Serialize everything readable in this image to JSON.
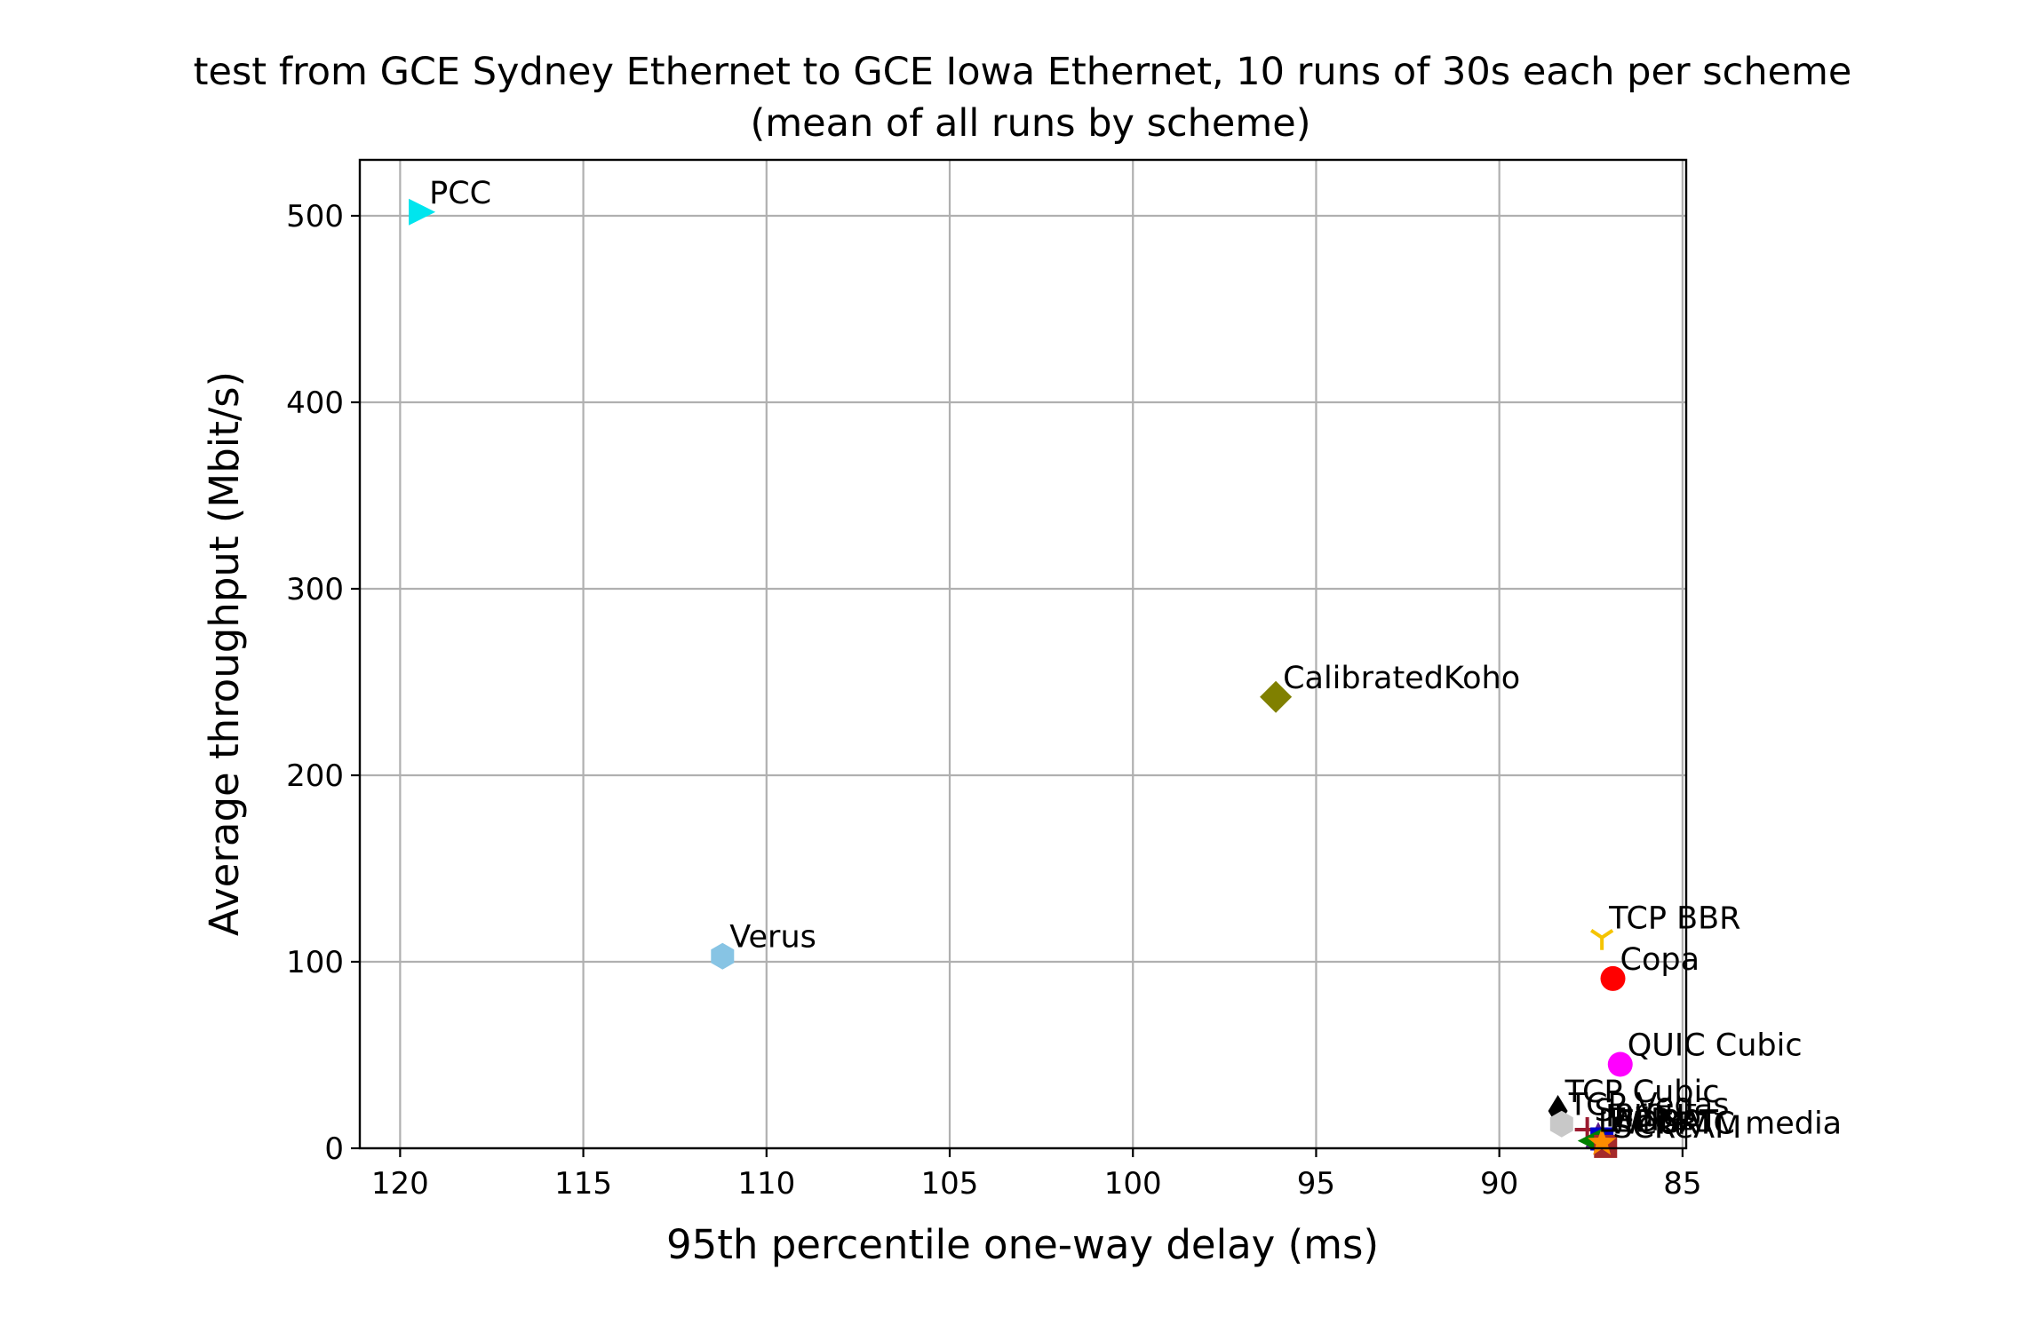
{
  "chart_data": {
    "type": "scatter",
    "title": "test from GCE Sydney Ethernet to GCE Iowa Ethernet, 10 runs of 30s each per scheme",
    "subtitle": "(mean of all runs by scheme)",
    "xlabel": "95th percentile one-way delay (ms)",
    "ylabel": "Average throughput (Mbit/s)",
    "x_inverted": true,
    "xlim": [
      121.1,
      84.9
    ],
    "ylim": [
      0,
      530
    ],
    "xticks": [
      120,
      115,
      110,
      105,
      100,
      95,
      90,
      85
    ],
    "yticks": [
      0,
      100,
      200,
      300,
      400,
      500
    ],
    "grid": true,
    "points": [
      {
        "label": "PCC",
        "x": 119.4,
        "y": 502,
        "marker": "triangle-right",
        "color": "#00e5ee"
      },
      {
        "label": "CalibratedKoho",
        "x": 96.1,
        "y": 242,
        "marker": "diamond",
        "color": "#808000"
      },
      {
        "label": "Verus",
        "x": 111.2,
        "y": 103,
        "marker": "hexagon",
        "color": "#87c4e4"
      },
      {
        "label": "TCP BBR",
        "x": 87.2,
        "y": 113,
        "marker": "tri-down",
        "color": "#f5c400"
      },
      {
        "label": "Copa",
        "x": 86.9,
        "y": 91,
        "marker": "circle",
        "color": "#ff0000"
      },
      {
        "label": "QUIC Cubic",
        "x": 86.7,
        "y": 45,
        "marker": "circle",
        "color": "#ff00ff"
      },
      {
        "label": "TCP Cubic",
        "x": 88.4,
        "y": 20,
        "marker": "thin-diamond",
        "color": "#000000"
      },
      {
        "label": "TCP Vegas",
        "x": 88.3,
        "y": 13,
        "marker": "hexagon",
        "color": "#c8c8c8"
      },
      {
        "label": "Sprout",
        "x": 87.6,
        "y": 10,
        "marker": "plus",
        "color": "#9b1b30"
      },
      {
        "label": "Indigo",
        "x": 87.3,
        "y": 7,
        "marker": "triangle-up",
        "color": "#5a1a8a"
      },
      {
        "label": "FillP",
        "x": 87.2,
        "y": 5,
        "marker": "square",
        "color": "#0000cd"
      },
      {
        "label": "LEDBAT",
        "x": 87.5,
        "y": 4,
        "marker": "triangle-left",
        "color": "#008000"
      },
      {
        "label": "SCReAM",
        "x": 87.1,
        "y": 1,
        "marker": "square",
        "color": "#a52a2a"
      },
      {
        "label": "WebRTC media",
        "x": 87.2,
        "y": 3,
        "marker": "star",
        "color": "#ff8c00"
      }
    ]
  }
}
